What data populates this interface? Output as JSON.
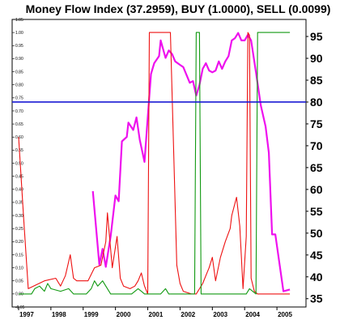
{
  "chart_data": {
    "type": "line",
    "title": "Money Flow Index (37.2959), BUY (1.0000), SELL (0.0099)",
    "x_labels": [
      "1997",
      "1998",
      "1999",
      "2000",
      "2001",
      "2002",
      "2003",
      "2004",
      "2005"
    ],
    "x_ticks": [
      1997,
      1998,
      1999,
      2000,
      2001,
      2002,
      2003,
      2004,
      2005
    ],
    "xlim": [
      1996.8,
      2005.9
    ],
    "left_axis": {
      "ylim": [
        -0.05,
        1.05
      ],
      "tick_labels": [
        "-0.05",
        "0.00",
        "0.05",
        "0.10",
        "0.15",
        "0.20",
        "0.25",
        "0.30",
        "0.35",
        "0.40",
        "0.45",
        "0.50",
        "0.55",
        "0.60",
        "0.65",
        "0.70",
        "0.75",
        "0.80",
        "0.85",
        "0.90",
        "0.95",
        "1.00",
        "1.05"
      ]
    },
    "right_axis": {
      "ylim": [
        33.1,
        98.9
      ],
      "tick_labels": [
        "35",
        "40",
        "45",
        "50",
        "55",
        "60",
        "65",
        "70",
        "75",
        "80",
        "85",
        "90",
        "95"
      ]
    },
    "reference_line": {
      "axis": "right",
      "value": 80,
      "color": "#1a1ad4"
    },
    "series": [
      {
        "axis": "right",
        "color": "#ee11ee",
        "points": [
          [
            1999.3,
            59.6
          ],
          [
            1999.5,
            42.8
          ],
          [
            1999.6,
            46.4
          ],
          [
            1999.7,
            42.3
          ],
          [
            1999.85,
            49.3
          ],
          [
            2000.0,
            58.6
          ],
          [
            2000.1,
            57.3
          ],
          [
            2000.2,
            71.0
          ],
          [
            2000.35,
            72.0
          ],
          [
            2000.4,
            75.3
          ],
          [
            2000.55,
            73.6
          ],
          [
            2000.65,
            76.5
          ],
          [
            2000.75,
            71.4
          ],
          [
            2000.9,
            66.3
          ],
          [
            2001.0,
            76.5
          ],
          [
            2001.1,
            86.4
          ],
          [
            2001.2,
            88.9
          ],
          [
            2001.35,
            90.5
          ],
          [
            2001.4,
            94.1
          ],
          [
            2001.55,
            90.1
          ],
          [
            2001.65,
            91.8
          ],
          [
            2001.75,
            91.0
          ],
          [
            2001.85,
            89.3
          ],
          [
            2002.0,
            88.5
          ],
          [
            2002.1,
            88.0
          ],
          [
            2002.3,
            84.4
          ],
          [
            2002.4,
            84.8
          ],
          [
            2002.5,
            81.5
          ],
          [
            2002.6,
            83.9
          ],
          [
            2002.7,
            87.6
          ],
          [
            2002.8,
            88.9
          ],
          [
            2002.9,
            87.2
          ],
          [
            2003.0,
            86.8
          ],
          [
            2003.1,
            87.2
          ],
          [
            2003.2,
            89.3
          ],
          [
            2003.3,
            87.6
          ],
          [
            2003.4,
            89.3
          ],
          [
            2003.5,
            90.5
          ],
          [
            2003.6,
            94.1
          ],
          [
            2003.7,
            94.6
          ],
          [
            2003.8,
            95.8
          ],
          [
            2003.9,
            94.1
          ],
          [
            2004.0,
            94.1
          ],
          [
            2004.1,
            95.4
          ],
          [
            2004.2,
            94.1
          ],
          [
            2004.35,
            86.8
          ],
          [
            2004.5,
            79.2
          ],
          [
            2004.65,
            74.4
          ],
          [
            2004.75,
            68.4
          ],
          [
            2004.85,
            49.7
          ],
          [
            2004.95,
            49.7
          ],
          [
            2005.2,
            36.7
          ],
          [
            2005.4,
            37.1
          ]
        ]
      },
      {
        "axis": "left",
        "color": "#ee1111",
        "points": [
          [
            1997.0,
            0.6
          ],
          [
            1997.15,
            0.3
          ],
          [
            1997.3,
            0.02
          ],
          [
            1997.8,
            0.05
          ],
          [
            1998.15,
            0.06
          ],
          [
            1998.3,
            0.03
          ],
          [
            1998.45,
            0.07
          ],
          [
            1998.6,
            0.15
          ],
          [
            1998.7,
            0.06
          ],
          [
            1998.8,
            0.05
          ],
          [
            1999.15,
            0.05
          ],
          [
            1999.35,
            0.1
          ],
          [
            1999.55,
            0.11
          ],
          [
            1999.7,
            0.2
          ],
          [
            1999.75,
            0.31
          ],
          [
            1999.9,
            0.1
          ],
          [
            2000.05,
            0.22
          ],
          [
            2000.15,
            0.06
          ],
          [
            2000.25,
            0.03
          ],
          [
            2000.45,
            0.02
          ],
          [
            2000.6,
            0.03
          ],
          [
            2000.7,
            0.05
          ],
          [
            2000.8,
            0.08
          ],
          [
            2000.9,
            0.03
          ],
          [
            2001.0,
            0.0
          ],
          [
            2001.05,
            1.0
          ],
          [
            2001.7,
            1.0
          ],
          [
            2001.9,
            0.11
          ],
          [
            2002.0,
            0.04
          ],
          [
            2002.1,
            0.01
          ],
          [
            2002.35,
            0.0
          ],
          [
            2002.5,
            0.0
          ],
          [
            2002.7,
            0.04
          ],
          [
            2002.8,
            0.07
          ],
          [
            2002.9,
            0.1
          ],
          [
            2003.0,
            0.14
          ],
          [
            2003.1,
            0.05
          ],
          [
            2003.25,
            0.14
          ],
          [
            2003.4,
            0.2
          ],
          [
            2003.55,
            0.25
          ],
          [
            2003.6,
            0.3
          ],
          [
            2003.75,
            0.37
          ],
          [
            2003.85,
            0.26
          ],
          [
            2003.95,
            0.02
          ],
          [
            2004.05,
            0.22
          ],
          [
            2004.1,
            1.0
          ],
          [
            2004.15,
            0.99
          ],
          [
            2004.2,
            0.06
          ],
          [
            2004.3,
            0.01
          ],
          [
            2004.4,
            0.0
          ],
          [
            2004.6,
            0.0
          ],
          [
            2004.75,
            0.0
          ],
          [
            2004.85,
            0.0
          ],
          [
            2004.95,
            0.0
          ],
          [
            2005.1,
            0.0
          ],
          [
            2005.2,
            0.0
          ],
          [
            2005.4,
            0.0
          ]
        ]
      },
      {
        "axis": "left",
        "color": "#119911",
        "points": [
          [
            1997.0,
            0.0
          ],
          [
            1997.4,
            0.0
          ],
          [
            1997.5,
            0.02
          ],
          [
            1997.65,
            0.03
          ],
          [
            1997.8,
            0.01
          ],
          [
            1997.9,
            0.04
          ],
          [
            1998.0,
            0.02
          ],
          [
            1998.3,
            0.01
          ],
          [
            1998.55,
            0.02
          ],
          [
            1998.7,
            0.0
          ],
          [
            1998.9,
            0.0
          ],
          [
            1999.1,
            0.0
          ],
          [
            1999.25,
            0.02
          ],
          [
            1999.35,
            0.05
          ],
          [
            1999.45,
            0.03
          ],
          [
            1999.6,
            0.05
          ],
          [
            1999.75,
            0.02
          ],
          [
            1999.85,
            0.0
          ],
          [
            2000.0,
            0.0
          ],
          [
            2000.5,
            0.0
          ],
          [
            2000.7,
            0.02
          ],
          [
            2000.8,
            0.01
          ],
          [
            2000.9,
            0.0
          ],
          [
            2001.2,
            0.0
          ],
          [
            2001.4,
            0.0
          ],
          [
            2001.55,
            0.02
          ],
          [
            2001.65,
            0.0
          ],
          [
            2001.9,
            0.0
          ],
          [
            2002.3,
            0.0
          ],
          [
            2002.45,
            0.0
          ],
          [
            2002.5,
            1.0
          ],
          [
            2002.6,
            1.0
          ],
          [
            2002.65,
            0.0
          ],
          [
            2003.0,
            0.0
          ],
          [
            2003.5,
            0.0
          ],
          [
            2003.9,
            0.0
          ],
          [
            2004.05,
            0.0
          ],
          [
            2004.15,
            0.02
          ],
          [
            2004.35,
            0.0
          ],
          [
            2004.4,
            1.0
          ],
          [
            2005.4,
            1.0
          ]
        ]
      }
    ],
    "grid": false,
    "legend": "none"
  }
}
